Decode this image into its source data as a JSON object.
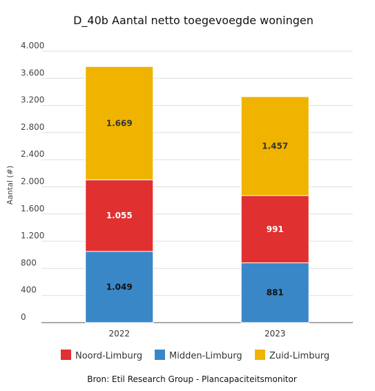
{
  "chart_data": {
    "type": "bar",
    "stacked": true,
    "title": "D_40b Aantal netto toegevoegde woningen",
    "ylabel": "Aantal (#)",
    "xlabel": "",
    "categories": [
      "2022",
      "2023"
    ],
    "ylim": [
      0,
      4000
    ],
    "yticks": [
      0,
      400,
      800,
      1200,
      1600,
      2000,
      2400,
      2800,
      3200,
      3600,
      4000
    ],
    "ytick_labels": [
      "0",
      "400",
      "800",
      "1.200",
      "1.600",
      "2.000",
      "2.400",
      "2.800",
      "3.200",
      "3.600",
      "4.000"
    ],
    "grid": true,
    "legend_position": "bottom",
    "series": [
      {
        "name": "Midden-Limburg",
        "color": "#3a87c8",
        "label_color": "#111111",
        "values": [
          1049,
          881
        ],
        "labels": [
          "1.049",
          "881"
        ]
      },
      {
        "name": "Noord-Limburg",
        "color": "#e03030",
        "label_color": "#ffffff",
        "values": [
          1055,
          991
        ],
        "labels": [
          "1.055",
          "991"
        ]
      },
      {
        "name": "Zuid-Limburg",
        "color": "#f0b400",
        "label_color": "#333333",
        "values": [
          1669,
          1457
        ],
        "labels": [
          "1.669",
          "1.457"
        ]
      }
    ],
    "legend_order": [
      "Noord-Limburg",
      "Midden-Limburg",
      "Zuid-Limburg"
    ]
  },
  "source": "Bron: Etil Research Group - Plancapaciteitsmonitor"
}
